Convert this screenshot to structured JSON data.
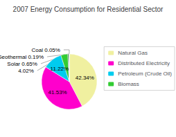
{
  "chart_data": {
    "type": "pie",
    "title": "2007 Energy Consumption for Residential Sector",
    "categories": [
      "Natural Gas",
      "Distributed Electricity",
      "Petroleum (Crude Oil)",
      "Biomass",
      null,
      null,
      null
    ],
    "values": [
      42.34,
      41.53,
      11.22,
      4.02,
      0.65,
      0.19,
      0.05
    ],
    "value_labels": [
      "42.34%",
      "41.53%",
      "11.22%",
      "4.02%",
      "Solar 0.65%",
      "Geothermal 0.19%",
      "Coal 0.05%"
    ],
    "colors": [
      "#f0f0a0",
      "#ff00cc",
      "#00ccee",
      "#33cc33",
      "#228822",
      "#0000cc",
      "#0000aa"
    ],
    "data_labels": true,
    "legend": "right"
  }
}
